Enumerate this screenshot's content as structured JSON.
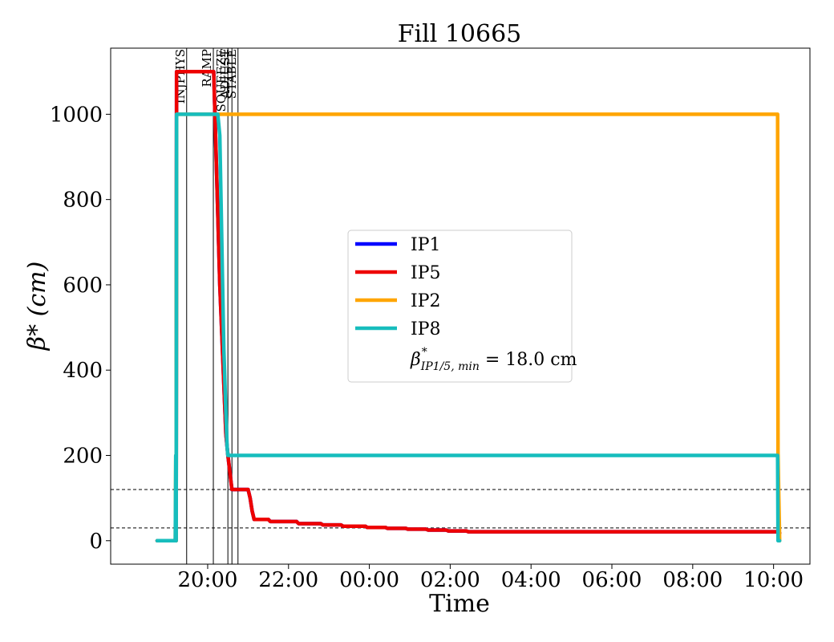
{
  "chart_data": {
    "type": "line",
    "title": "Fill 10665",
    "xlabel": "Time",
    "ylabel": "β* (cm)",
    "x_unit": "hours",
    "xlim": [
      17.6,
      34.9
    ],
    "ylim": [
      -55,
      1155
    ],
    "xticks": [
      {
        "value": 20,
        "label": "20:00"
      },
      {
        "value": 22,
        "label": "22:00"
      },
      {
        "value": 24,
        "label": "00:00"
      },
      {
        "value": 26,
        "label": "02:00"
      },
      {
        "value": 28,
        "label": "04:00"
      },
      {
        "value": 30,
        "label": "06:00"
      },
      {
        "value": 32,
        "label": "08:00"
      },
      {
        "value": 34,
        "label": "10:00"
      }
    ],
    "yticks": [
      0,
      200,
      400,
      600,
      800,
      1000
    ],
    "phases": [
      {
        "label": "INJPHYS",
        "x": 19.48
      },
      {
        "label": "RAMP",
        "x": 20.14
      },
      {
        "label": "SQUEEZE",
        "x": 20.5
      },
      {
        "label": "ADJUST",
        "x": 20.6
      },
      {
        "label": "STABLE",
        "x": 20.75
      }
    ],
    "reference_lines": [
      {
        "y": 120,
        "style": "dashed"
      },
      {
        "y": 30,
        "style": "dashed"
      }
    ],
    "series": [
      {
        "name": "IP1",
        "color": "#0000ff",
        "x": [
          18.75,
          19.22,
          19.23,
          20.15,
          20.3,
          20.45,
          20.5,
          20.55,
          20.6,
          21.0,
          21.05,
          21.1,
          21.15,
          21.5,
          21.55,
          22.2,
          22.25,
          22.8,
          22.85,
          23.3,
          23.35,
          23.9,
          23.95,
          24.4,
          24.45,
          24.9,
          24.95,
          25.4,
          25.45,
          25.9,
          25.95,
          26.4,
          26.45,
          34.1,
          34.15
        ],
        "y": [
          0,
          0,
          1100,
          1100,
          600,
          250,
          200,
          160,
          120,
          120,
          100,
          70,
          50,
          50,
          45,
          45,
          40,
          40,
          37,
          37,
          34,
          34,
          31,
          31,
          29,
          29,
          27,
          27,
          25,
          25,
          23,
          23,
          21,
          21,
          18
        ]
      },
      {
        "name": "IP5",
        "color": "#ee0000",
        "x": [
          18.75,
          19.22,
          19.23,
          20.15,
          20.3,
          20.45,
          20.5,
          20.55,
          20.6,
          21.0,
          21.05,
          21.1,
          21.15,
          21.5,
          21.55,
          22.2,
          22.25,
          22.8,
          22.85,
          23.3,
          23.35,
          23.9,
          23.95,
          24.4,
          24.45,
          24.9,
          24.95,
          25.4,
          25.45,
          25.9,
          25.95,
          26.4,
          26.45,
          34.1,
          34.15
        ],
        "y": [
          0,
          0,
          1100,
          1100,
          600,
          250,
          200,
          160,
          120,
          120,
          100,
          70,
          50,
          50,
          45,
          45,
          40,
          40,
          37,
          37,
          34,
          34,
          31,
          31,
          29,
          29,
          27,
          27,
          25,
          25,
          23,
          23,
          21,
          21,
          18
        ]
      },
      {
        "name": "IP2",
        "color": "#ffa500",
        "x": [
          18.75,
          19.2,
          19.21,
          19.22,
          19.23,
          34.1,
          34.11,
          34.15
        ],
        "y": [
          0,
          0,
          200,
          0,
          1000,
          1000,
          200,
          0
        ]
      },
      {
        "name": "IP8",
        "color": "#17bdbd",
        "x": [
          18.75,
          19.2,
          19.21,
          19.22,
          19.23,
          20.25,
          20.3,
          20.35,
          20.4,
          20.45,
          20.48,
          20.5,
          34.1,
          34.11,
          34.15
        ],
        "y": [
          0,
          0,
          200,
          0,
          1000,
          1000,
          950,
          700,
          450,
          300,
          220,
          200,
          200,
          0,
          0
        ]
      }
    ],
    "legend": {
      "location": "center",
      "entries": [
        "IP1",
        "IP5",
        "IP2",
        "IP8"
      ],
      "note_symbol": "β",
      "note_subscript": "IP1/5, min",
      "note_value": " = 18.0 cm"
    }
  }
}
